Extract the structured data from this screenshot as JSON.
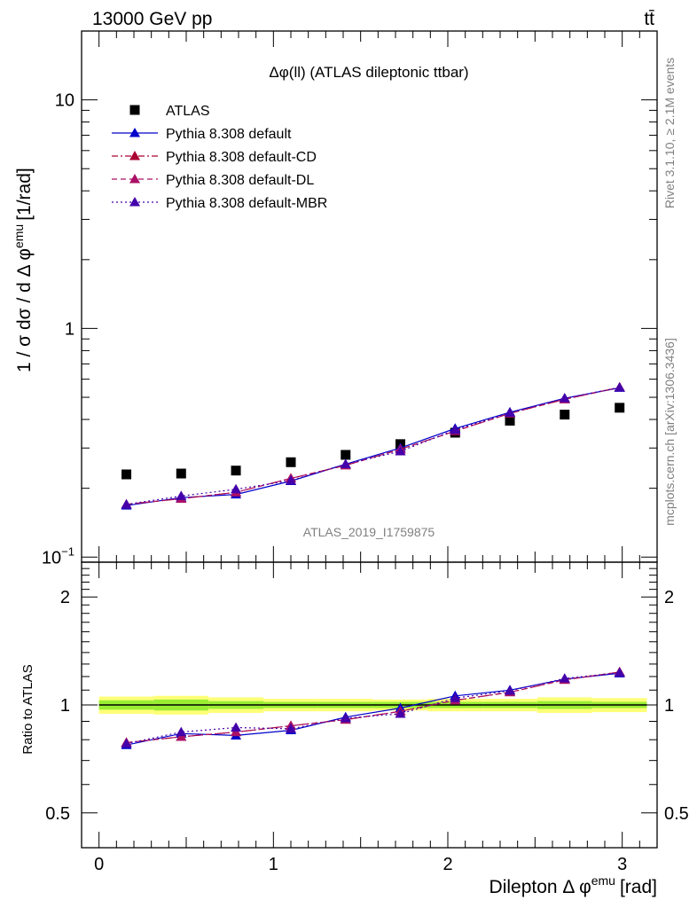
{
  "header": {
    "energy_label": "13000 GeV pp",
    "process_label": "tt̄",
    "side_rivet": "Rivet 3.1.10, ≥ 2.1M events",
    "side_mcplots": "mcplots.cern.ch [arXiv:1306.3436]",
    "watermark": "ATLAS_2019_I1759875"
  },
  "chart_data": [
    {
      "type": "scatter",
      "panel": "main",
      "title": "Δφ(ll) (ATLAS dileptonic ttbar)",
      "ylabel": "1 / σ  dσ / d Δ φ^emu [1/rad]",
      "ylabel_parts": {
        "main": "1 / σ  dσ / d Δ φ",
        "sup": "emu",
        "unit": "[1/rad]"
      },
      "yscale": "log",
      "ylim": [
        0.095,
        20
      ],
      "xlim": [
        -0.1,
        3.2
      ],
      "y_tick_labels": [
        {
          "value": 0.1,
          "base": "10",
          "exp": "−1"
        },
        {
          "value": 1,
          "base": "1",
          "exp": ""
        },
        {
          "value": 10,
          "base": "10",
          "exp": ""
        }
      ],
      "legend_placement": "top-left",
      "x": [
        0.157,
        0.471,
        0.785,
        1.1,
        1.414,
        1.728,
        2.042,
        2.356,
        2.67,
        2.985
      ],
      "series": [
        {
          "name": "ATLAS",
          "color": "#000000",
          "marker": "square",
          "line": "none",
          "values": [
            0.23,
            0.232,
            0.239,
            0.26,
            0.28,
            0.312,
            0.35,
            0.395,
            0.42,
            0.45
          ]
        },
        {
          "name": "Pythia 8.308 default",
          "color": "#0000cc",
          "marker": "triangle",
          "line": "solid",
          "values": [
            0.168,
            0.182,
            0.188,
            0.215,
            0.255,
            0.3,
            0.365,
            0.43,
            0.495,
            0.55
          ]
        },
        {
          "name": "Pythia 8.308 default-CD",
          "color": "#aa0033",
          "marker": "triangle",
          "line": "dashdot",
          "values": [
            0.17,
            0.18,
            0.192,
            0.221,
            0.252,
            0.296,
            0.356,
            0.425,
            0.49,
            0.553
          ]
        },
        {
          "name": "Pythia 8.308 default-DL",
          "color": "#aa1166",
          "marker": "triangle",
          "line": "dashed",
          "values": [
            0.17,
            0.18,
            0.192,
            0.221,
            0.252,
            0.296,
            0.356,
            0.425,
            0.49,
            0.553
          ]
        },
        {
          "name": "Pythia 8.308 default-MBR",
          "color": "#4400aa",
          "marker": "triangle",
          "line": "dotted",
          "values": [
            0.17,
            0.185,
            0.198,
            0.216,
            0.255,
            0.29,
            0.36,
            0.428,
            0.495,
            0.552
          ]
        }
      ]
    },
    {
      "type": "scatter",
      "panel": "ratio",
      "ylabel": "Ratio to ATLAS",
      "xlabel": "Dilepton Δ φ^emu [rad]",
      "xlabel_parts": {
        "main": "Dilepton Δ φ",
        "sup": "emu",
        "unit": "[rad]"
      },
      "yscale": "log",
      "ylim": [
        0.4,
        2.5
      ],
      "xlim": [
        -0.1,
        3.2
      ],
      "x_tick_labels": [
        "0",
        "1",
        "2",
        "3"
      ],
      "y_tick_labels": [
        {
          "value": 0.5,
          "label": "0.5"
        },
        {
          "value": 1,
          "label": "1"
        },
        {
          "value": 2,
          "label": "2"
        }
      ],
      "reference_line": 1,
      "uncertainty_band": {
        "inner_color": "#99ee33",
        "outer_color": "#ffff77",
        "inner_halfwidth": [
          0.03,
          0.035,
          0.025,
          0.02,
          0.02,
          0.02,
          0.02,
          0.02,
          0.025,
          0.02
        ],
        "outer_halfwidth": [
          0.055,
          0.06,
          0.05,
          0.04,
          0.04,
          0.035,
          0.04,
          0.04,
          0.05,
          0.045
        ]
      },
      "x": [
        0.157,
        0.471,
        0.785,
        1.1,
        1.414,
        1.728,
        2.042,
        2.356,
        2.67,
        2.985
      ],
      "series": [
        {
          "name": "Pythia 8.308 default",
          "color": "#0000cc",
          "marker": "triangle",
          "line": "solid",
          "values": [
            0.773,
            0.832,
            0.822,
            0.85,
            0.925,
            0.98,
            1.06,
            1.1,
            1.18,
            1.225
          ]
        },
        {
          "name": "Pythia 8.308 default-CD",
          "color": "#aa0033",
          "marker": "triangle",
          "line": "dashdot",
          "values": [
            0.785,
            0.815,
            0.84,
            0.875,
            0.91,
            0.96,
            1.03,
            1.085,
            1.175,
            1.235
          ]
        },
        {
          "name": "Pythia 8.308 default-DL",
          "color": "#aa1166",
          "marker": "triangle",
          "line": "dashed",
          "values": [
            0.785,
            0.815,
            0.84,
            0.875,
            0.91,
            0.96,
            1.03,
            1.085,
            1.175,
            1.235
          ]
        },
        {
          "name": "Pythia 8.308 default-MBR",
          "color": "#4400aa",
          "marker": "triangle",
          "line": "dotted",
          "values": [
            0.78,
            0.84,
            0.865,
            0.858,
            0.918,
            0.945,
            1.045,
            1.095,
            1.185,
            1.23
          ]
        }
      ]
    }
  ]
}
